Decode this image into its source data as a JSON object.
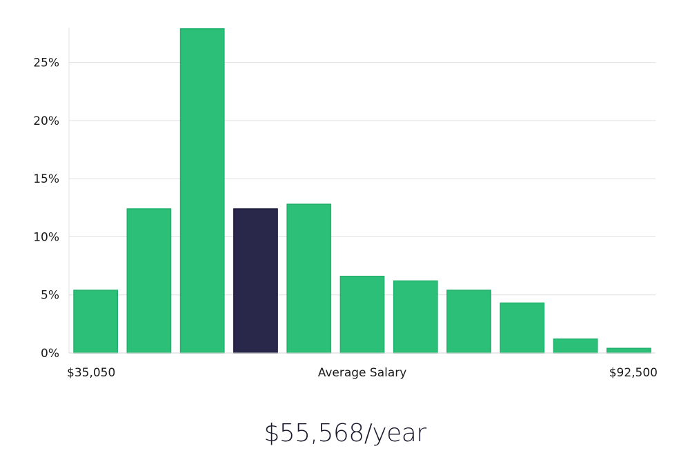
{
  "chart_data": {
    "type": "bar",
    "title": "",
    "xlabel": "Average Salary",
    "ylabel": "",
    "x_min_label": "$35,050",
    "x_max_label": "$92,500",
    "ylim": [
      0,
      28
    ],
    "yticks": [
      0,
      5,
      10,
      15,
      20,
      25
    ],
    "ytick_labels": [
      "0%",
      "5%",
      "10%",
      "15%",
      "20%",
      "25%"
    ],
    "grid": true,
    "values": [
      5.4,
      12.4,
      27.9,
      12.4,
      12.8,
      6.6,
      6.2,
      5.4,
      4.3,
      1.2,
      0.4
    ],
    "highlight_index": 3,
    "bar_color": "#2bbf78",
    "highlight_color": "#29274a"
  },
  "caption": "$55,568/year"
}
